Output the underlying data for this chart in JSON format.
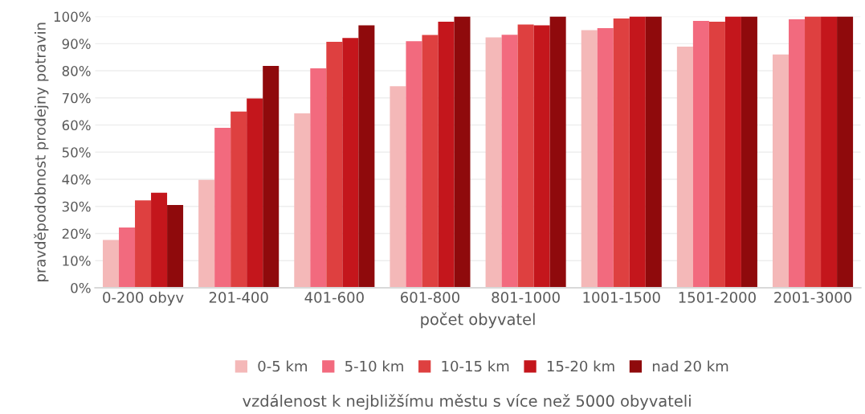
{
  "chart_data": {
    "type": "bar",
    "xlabel": "počet obyvatel",
    "ylabel": "pravděpodobnost prodejny potravin",
    "legend_title": "vzdálenost k nejbližšímu městu s více než 5000 obyvateli",
    "categories": [
      "0-200 obyv",
      "201-400",
      "401-600",
      "601-800",
      "801-1000",
      "1001-1500",
      "1501-2000",
      "2001-3000"
    ],
    "series": [
      {
        "name": "0-5 km",
        "color": "#f4b8b8",
        "values": [
          17.6,
          39.8,
          64.3,
          74.3,
          92.3,
          95.0,
          88.9,
          86.0
        ]
      },
      {
        "name": "5-10 km",
        "color": "#f26a7e",
        "values": [
          22.2,
          59.0,
          80.9,
          90.9,
          93.3,
          95.7,
          98.4,
          99.0
        ]
      },
      {
        "name": "10-15 km",
        "color": "#de4040",
        "values": [
          32.2,
          65.0,
          90.7,
          93.2,
          97.1,
          99.3,
          98.1,
          100
        ]
      },
      {
        "name": "15-20 km",
        "color": "#c4161c",
        "values": [
          35.0,
          69.8,
          92.1,
          98.1,
          96.8,
          100,
          100,
          100
        ]
      },
      {
        "name": "nad 20 km",
        "color": "#8f0a0c",
        "values": [
          30.5,
          81.8,
          96.8,
          100,
          100,
          100,
          100,
          100
        ]
      }
    ],
    "ylim": [
      0,
      100
    ],
    "yticks": [
      {
        "value": 0,
        "label": "0%"
      },
      {
        "value": 10,
        "label": "10%"
      },
      {
        "value": 20,
        "label": "20%"
      },
      {
        "value": 30,
        "label": "30%"
      },
      {
        "value": 40,
        "label": "40%"
      },
      {
        "value": 50,
        "label": "50%"
      },
      {
        "value": 60,
        "label": "60%"
      },
      {
        "value": 70,
        "label": "70%"
      },
      {
        "value": 80,
        "label": "80%"
      },
      {
        "value": 90,
        "label": "90%"
      },
      {
        "value": 100,
        "label": "100%"
      }
    ],
    "grid": "y",
    "legend": "bottom",
    "marker": "square"
  }
}
